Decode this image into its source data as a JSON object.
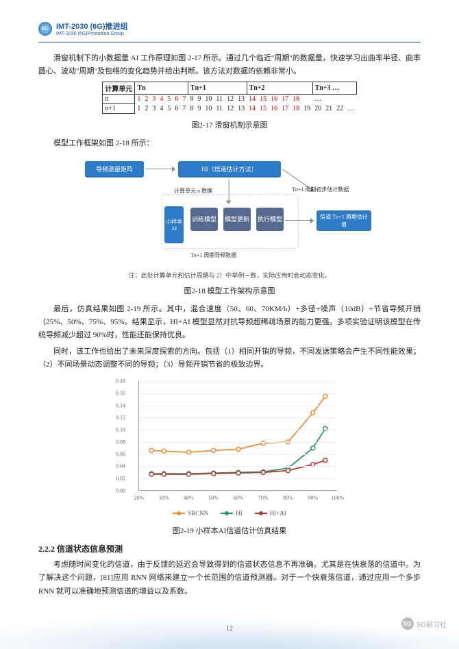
{
  "header": {
    "badge": "6G",
    "title": "IMT-2030 (6G)推进组",
    "sub": "IMT-2030 (6G)Promotion Group"
  },
  "p1": "滑窗机制下的小数据量 AI 工作原理如图 2-17 所示。通过几个临近\"周期\"的数据量，快速学习出曲率半径、曲率圆心、波动\"周期\"及包络的变化趋势并给出判断。该方法对数据的依赖非常小。",
  "tbl": {
    "groups": [
      "计算单元",
      "Tn",
      "Tn+1",
      "Tn+2",
      "Tn+3 …"
    ],
    "rows": [
      [
        "n",
        "1",
        "2",
        "3",
        "4",
        "5",
        "6",
        "7",
        "8",
        "9",
        "10",
        "11",
        "12",
        "13",
        "14",
        "15",
        "16",
        "17",
        "18",
        "",
        "…"
      ],
      [
        "n+1",
        "1",
        "2",
        "3",
        "4",
        "5",
        "6",
        "7",
        "8",
        "9",
        "10",
        "11",
        "12",
        "13",
        "14",
        "15",
        "16",
        "17",
        "18",
        "19",
        "20",
        "21",
        "22",
        "…"
      ]
    ],
    "red1": [
      0,
      1,
      2,
      3,
      4,
      5,
      6,
      13,
      14,
      15,
      16,
      17
    ],
    "red2": [
      13,
      14,
      15,
      16,
      17
    ]
  },
  "cap17": "图2-17 滑窗机制示意图",
  "p2": "模型工作框架如图 2-18 所示：",
  "dia": {
    "a": "导频测量矩阵",
    "b": "HI（信道估计方法）",
    "c": "小样本AI",
    "d": "训练模型",
    "e": "模型更新",
    "f": "执行模型",
    "g": "信道 Tn+1 周期估计值",
    "l1": "计算单元 n 数据",
    "l2": "Tn+1 周期初步估计数据",
    "l3": "Tn+1 周期导频数据",
    "note": "注：此处计算单元和估计周期与 2）中举例一致，实际应用时会动态变化。"
  },
  "cap18": "图2-18 模型工作架构示意图",
  "p3": "最后，仿真结果如图 2-19 所示。其中，混合速度（50、60、70KM/h）+多径+噪声（10dB）+节省导频开销（25%、50%、75%、95%。结果显示，HI+AI 模型显然对抗导频超稀疏场景的能力更强。多项实验证明该模型在传统导频减少超过 90%时，性能还能保持优良。",
  "p4": "同时，该工作也给出了未来深度探索的方向。包括（1）相同开销的导频，不同发送策略会产生不同性能效果；（2）不同场景动态调整不同的导频；（3）导频开销节省的极致边界。",
  "chart": {
    "xlim": [
      20,
      100
    ],
    "ylim": [
      0,
      0.18
    ],
    "ystep": 0.02,
    "xstep": 10,
    "x": [
      25,
      30,
      40,
      50,
      60,
      70,
      80,
      90,
      95
    ],
    "series": [
      {
        "name": "SRCNN",
        "color": "#e8903a",
        "y": [
          0.066,
          0.065,
          0.063,
          0.066,
          0.068,
          0.078,
          0.08,
          0.128,
          0.155
        ]
      },
      {
        "name": "HI",
        "color": "#2a9a63",
        "y": [
          0.028,
          0.028,
          0.028,
          0.029,
          0.03,
          0.031,
          0.037,
          0.07,
          0.102
        ]
      },
      {
        "name": "HI+AI",
        "color": "#b43a3a",
        "y": [
          0.027,
          0.027,
          0.027,
          0.028,
          0.029,
          0.03,
          0.033,
          0.043,
          0.05
        ]
      }
    ]
  },
  "cap19": "图2-19 小样本AI信道估计仿真结果",
  "sec": "2.2.2 信道状态信息预测",
  "p5": "考虑随时间变化的信道，由于反馈的延迟会导致得到的信道状态信息不再准确。尤其是在快衰落的信道中。为了解决这个问题，[81]应用 RNN 网络来建立一个长范围的信道预测器。对于一个快衰落信道，通过应用一个多步 RNN 就可以准确地预测信道的增益以及系数。",
  "pagenum": "12",
  "wm": "5G研习社"
}
